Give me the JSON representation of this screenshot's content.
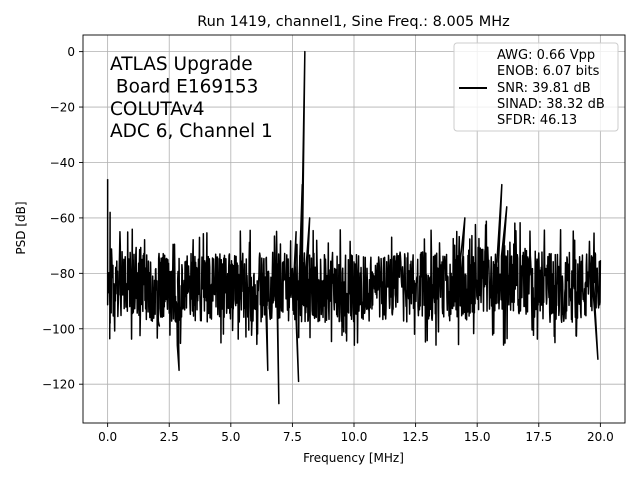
{
  "chart_data": {
    "type": "line",
    "title": "Run 1419, channel1, Sine Freq.: 8.005 MHz",
    "xlabel": "Frequency [MHz]",
    "ylabel": "PSD [dB]",
    "xlim": [
      -1.0,
      21.0
    ],
    "ylim": [
      -134,
      6
    ],
    "x_ticks": [
      0.0,
      2.5,
      5.0,
      7.5,
      10.0,
      12.5,
      15.0,
      17.5,
      20.0
    ],
    "x_tick_labels": [
      "0.0",
      "2.5",
      "5.0",
      "7.5",
      "10.0",
      "12.5",
      "15.0",
      "17.5",
      "20.0"
    ],
    "y_ticks": [
      0,
      -20,
      -40,
      -60,
      -80,
      -100,
      -120
    ],
    "y_tick_labels": [
      "0",
      "−20",
      "−40",
      "−60",
      "−80",
      "−100",
      "−120"
    ],
    "grid": true,
    "annotation": [
      "ATLAS Upgrade",
      " Board E169153",
      "COLUTAv4",
      "ADC 6, Channel 1"
    ],
    "legend": {
      "position": "top-right",
      "entries": [
        "AWG: 0.66 Vpp",
        "ENOB: 6.07 bits",
        "SNR: 39.81 dB",
        "SINAD: 38.32 dB",
        "SFDR: 46.13"
      ]
    },
    "series": [
      {
        "name": "PSD",
        "color": "#000000",
        "x_range": [
          0.0,
          20.0
        ],
        "noise_floor_db": -85,
        "noise_envelope_db": [
          -100,
          -70
        ],
        "peaks": [
          {
            "x": 0.0,
            "y": -46
          },
          {
            "x": 0.1,
            "y": -58
          },
          {
            "x": 0.1,
            "y": -98
          },
          {
            "x": 2.1,
            "y": -99
          },
          {
            "x": 2.9,
            "y": -115
          },
          {
            "x": 6.5,
            "y": -115
          },
          {
            "x": 6.95,
            "y": -127
          },
          {
            "x": 7.65,
            "y": -65
          },
          {
            "x": 7.9,
            "y": -48
          },
          {
            "x": 8.005,
            "y": 0
          },
          {
            "x": 7.75,
            "y": -119
          },
          {
            "x": 8.2,
            "y": -60
          },
          {
            "x": 14.5,
            "y": -60
          },
          {
            "x": 16.0,
            "y": -48
          },
          {
            "x": 16.2,
            "y": -56
          },
          {
            "x": 19.9,
            "y": -111
          }
        ]
      }
    ]
  }
}
